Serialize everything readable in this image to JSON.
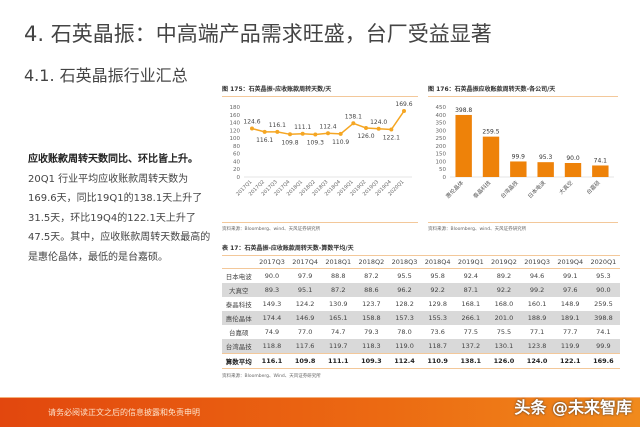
{
  "title": "4. 石英晶振：中高端产品需求旺盛，台厂受益显著",
  "subtitle": "4.1. 石英晶振行业汇总",
  "summary": {
    "heading": "应收账款周转天数同比、环比皆上升。",
    "body": "20Q1 行业平均应收账款周转天数为 169.6天，同比19Q1的138.1天上升了31.5天，环比19Q4的122.1天上升了47.5天。其中，应收账款周转天数最高的是惠伦晶体，最低的是台嘉硕。"
  },
  "colors": {
    "accent": "#f08a1c",
    "line": "#f5a623",
    "bar": "#ee8209"
  },
  "chart_data": [
    {
      "type": "line",
      "title": "图 175：石英晶振-应收账款周转天数/天",
      "categories": [
        "2017Q1",
        "2017Q2",
        "2017Q3",
        "2017Q4",
        "2018Q1",
        "2018Q2",
        "2018Q3",
        "2018Q4",
        "2019Q1",
        "2019Q2",
        "2019Q3",
        "2019Q4",
        "2020Q1"
      ],
      "values": [
        124.6,
        116.1,
        116.1,
        109.8,
        111.1,
        109.3,
        112.4,
        110.9,
        138.1,
        126.0,
        124.0,
        122.1,
        169.6
      ],
      "ylim": [
        0,
        180
      ],
      "yticks": [
        0,
        20,
        40,
        60,
        80,
        100,
        120,
        140,
        160,
        180
      ],
      "source": "资料来源：Bloomberg、wind、天风证券研究所"
    },
    {
      "type": "bar",
      "title": "图 176：石英晶振应收账款周转天数-各公司/天",
      "categories": [
        "惠伦晶体",
        "泰晶科技",
        "台湾晶技",
        "日本电波",
        "大真空",
        "台嘉硕"
      ],
      "values": [
        398.8,
        259.5,
        99.9,
        95.3,
        90.0,
        74.1
      ],
      "ylim": [
        0,
        450
      ],
      "yticks": [
        0,
        50,
        100,
        150,
        200,
        250,
        300,
        350,
        400,
        450
      ],
      "source": "资料来源：Bloomberg、wind、天风证券研究所"
    }
  ],
  "table": {
    "title": "表 17：石英晶振-应收账款周转天数-算数平均/天",
    "columns": [
      "",
      "2017Q3",
      "2017Q4",
      "2018Q1",
      "2018Q2",
      "2018Q3",
      "2018Q4",
      "2019Q1",
      "2019Q2",
      "2019Q3",
      "2019Q4",
      "2020Q1"
    ],
    "rows": [
      [
        "日本电波",
        "90.0",
        "97.9",
        "88.8",
        "87.2",
        "95.5",
        "95.8",
        "92.4",
        "89.2",
        "94.6",
        "99.1",
        "95.3"
      ],
      [
        "大真空",
        "89.3",
        "95.1",
        "87.2",
        "88.6",
        "96.2",
        "92.2",
        "87.1",
        "92.2",
        "99.2",
        "97.6",
        "90.0"
      ],
      [
        "泰晶科技",
        "149.3",
        "124.2",
        "130.9",
        "123.7",
        "128.2",
        "129.8",
        "168.1",
        "168.0",
        "160.1",
        "148.9",
        "259.5"
      ],
      [
        "惠伦晶体",
        "174.4",
        "146.9",
        "165.1",
        "158.8",
        "157.3",
        "155.3",
        "266.1",
        "201.0",
        "188.9",
        "189.1",
        "398.8"
      ],
      [
        "台嘉硕",
        "74.9",
        "77.0",
        "74.7",
        "79.3",
        "78.0",
        "73.6",
        "77.5",
        "75.5",
        "77.1",
        "77.7",
        "74.1"
      ],
      [
        "台湾晶技",
        "118.8",
        "117.6",
        "119.7",
        "118.3",
        "119.0",
        "118.7",
        "137.2",
        "130.1",
        "123.8",
        "119.9",
        "99.9"
      ],
      [
        "算数平均",
        "116.1",
        "109.8",
        "111.1",
        "109.3",
        "112.4",
        "110.9",
        "138.1",
        "126.0",
        "124.0",
        "122.1",
        "169.6"
      ]
    ],
    "source": "资料来源：Bloomberg、Wind、天风证券研究所"
  },
  "footer": {
    "disclaimer": "请务必阅读正文之后的信息披露和免责申明",
    "watermark": "头条 @未来智库"
  }
}
